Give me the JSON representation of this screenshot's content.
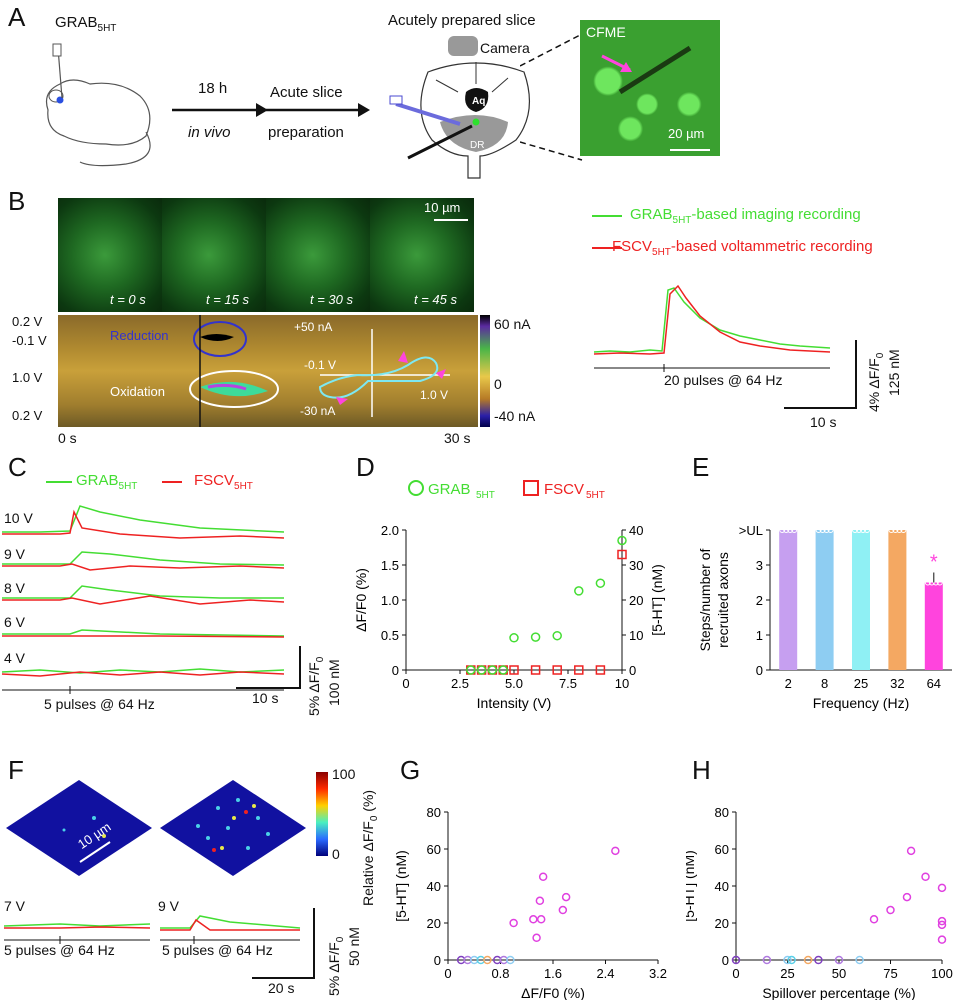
{
  "panels": {
    "A": "A",
    "B": "B",
    "C": "C",
    "D": "D",
    "E": "E",
    "F": "F",
    "G": "G",
    "H": "H"
  },
  "panelA": {
    "grab": "GRAB",
    "grab_sub": "5HT",
    "arrow1_top": "18 h",
    "arrow1_bottom": "in vivo",
    "arrow2_top": "Acute slice",
    "arrow2_bottom": "preparation",
    "slice_title": "Acutely prepared slice",
    "camera": "Camera",
    "aq": "Aq",
    "dr": "DR",
    "cfme": "CFME",
    "scale": "20 µm"
  },
  "panelB": {
    "scale": "10 µm",
    "times": [
      "t = 0 s",
      "t = 15 s",
      "t = 30 s",
      "t = 45 s"
    ],
    "volt_labels": [
      "0.2 V",
      "-0.1 V",
      "1.0 V",
      "0.2 V"
    ],
    "reduction": "Reduction",
    "oxidation": "Oxidation",
    "cv_top": "+50 nA",
    "cv_bottom": "-30 nA",
    "cv_left": "-0.1 V",
    "cv_right": "1.0 V",
    "cb_top": "60 nA",
    "cb_mid": "0",
    "cb_bot": "-40 nA",
    "x_start": "0 s",
    "x_end": "30 s",
    "legend_green_a": "GRAB",
    "legend_green_sub": "5HT",
    "legend_green_b": "-based imaging recording",
    "legend_red_a": "FSCV",
    "legend_red_sub": "5HT",
    "legend_red_b": "-based voltammetric recording",
    "stim": "20 pulses @ 64 Hz",
    "sb_y1": "4% ΔF/F",
    "sb_y1_sub": "0",
    "sb_y2": "125 nM",
    "sb_x": "10 s",
    "colors": {
      "green": "#44dd33",
      "red": "#ee2222"
    }
  },
  "panelC": {
    "legend_green_a": "GRAB",
    "legend_green_sub": "5HT",
    "legend_red_a": "FSCV",
    "legend_red_sub": "5HT",
    "voltages": [
      "10 V",
      "9 V",
      "8 V",
      "6 V",
      "4 V"
    ],
    "stim": "5 pulses @ 64 Hz",
    "sb_y1": "5% ΔF/F",
    "sb_y1_sub": "0",
    "sb_y2": "100 nM",
    "sb_x": "10 s"
  },
  "chart_data": [
    {
      "panel": "D",
      "type": "scatter",
      "xlabel": "Intensity (V)",
      "ylabel": "ΔF/F0 (%)",
      "y2label": "[5-HT] (nM)",
      "xlim": [
        0,
        10
      ],
      "ylim": [
        0,
        2.0
      ],
      "y2lim": [
        0,
        40
      ],
      "xticks": [
        "0",
        "2.5",
        "5.0",
        "7.5",
        "10"
      ],
      "yticks": [
        "0",
        "0.5",
        "1.0",
        "1.5",
        "2.0"
      ],
      "y2ticks": [
        "0",
        "10",
        "20",
        "30",
        "40"
      ],
      "series": [
        {
          "name": "GRAB5HT",
          "axis": "left",
          "x": [
            3,
            3.5,
            4,
            4.5,
            5,
            6,
            7,
            8,
            9,
            10
          ],
          "y": [
            0,
            0,
            0,
            0,
            0.46,
            0.47,
            0.49,
            1.13,
            1.24,
            1.85
          ]
        },
        {
          "name": "FSCV5HT",
          "axis": "right",
          "x": [
            3,
            3.5,
            4,
            4.5,
            5,
            6,
            7,
            8,
            9,
            10
          ],
          "y": [
            0,
            0,
            0,
            0,
            0,
            0,
            0,
            0,
            0,
            33
          ]
        }
      ]
    },
    {
      "panel": "E",
      "type": "bar",
      "xlabel": "Frequency (Hz)",
      "ylabel": "Steps/number of recruited axons",
      "categories": [
        "2",
        "8",
        "25",
        "32",
        "64"
      ],
      "values": [
        4,
        4,
        4,
        4,
        2.5
      ],
      "yticks": [
        "0",
        "1",
        "2",
        "3",
        ">UL"
      ],
      "colors": [
        "#c69ff0",
        "#8ecdf2",
        "#8ff0f4",
        "#f4a862",
        "#ff44dd"
      ],
      "star": "*"
    },
    {
      "panel": "G",
      "type": "scatter",
      "xlabel": "ΔF/F0 (%)",
      "ylabel": "[5-HT] (nM)",
      "xlim": [
        0,
        3.2
      ],
      "ylim": [
        0,
        80
      ],
      "xticks": [
        "0",
        "0.8",
        "1.6",
        "2.4",
        "3.2"
      ],
      "yticks": [
        "0",
        "20",
        "40",
        "60",
        "80"
      ],
      "x": [
        1.0,
        1.3,
        1.35,
        1.4,
        1.42,
        1.45,
        1.75,
        1.8,
        2.55,
        0.2,
        0.3,
        0.4,
        0.5,
        0.6,
        0.75,
        0.85,
        0.95
      ],
      "y": [
        20,
        22,
        12,
        32,
        22,
        45,
        27,
        34,
        59,
        0,
        0,
        0,
        0,
        0,
        0,
        0,
        0
      ]
    },
    {
      "panel": "H",
      "type": "scatter",
      "xlabel": "Spillover percentage (%)",
      "ylabel": "[5-HT] (nM)",
      "xlim": [
        0,
        100
      ],
      "ylim": [
        0,
        80
      ],
      "xticks": [
        "0",
        "25",
        "50",
        "75",
        "100"
      ],
      "yticks": [
        "0",
        "20",
        "40",
        "60",
        "80"
      ],
      "x": [
        67,
        75,
        83,
        85,
        92,
        100,
        100,
        100,
        100,
        0,
        15,
        25,
        27,
        35,
        40,
        50,
        60
      ],
      "y": [
        22,
        27,
        34,
        59,
        45,
        39,
        21,
        19,
        11,
        0,
        0,
        0,
        0,
        0,
        0,
        0,
        0
      ]
    }
  ],
  "panelF": {
    "scale": "10 µm",
    "cb_top": "100",
    "cb_bot": "0",
    "cb_label": "Relative ΔF/F",
    "cb_label_sub": "0",
    "cb_label_end": " (%)",
    "v1": "7 V",
    "v2": "9 V",
    "stim1": "5 pulses @ 64 Hz",
    "stim2": "5 pulses @ 64 Hz",
    "sb_y1": "5% ΔF/F",
    "sb_y1_sub": "0",
    "sb_y2": "50 nM",
    "sb_x": "20 s"
  }
}
